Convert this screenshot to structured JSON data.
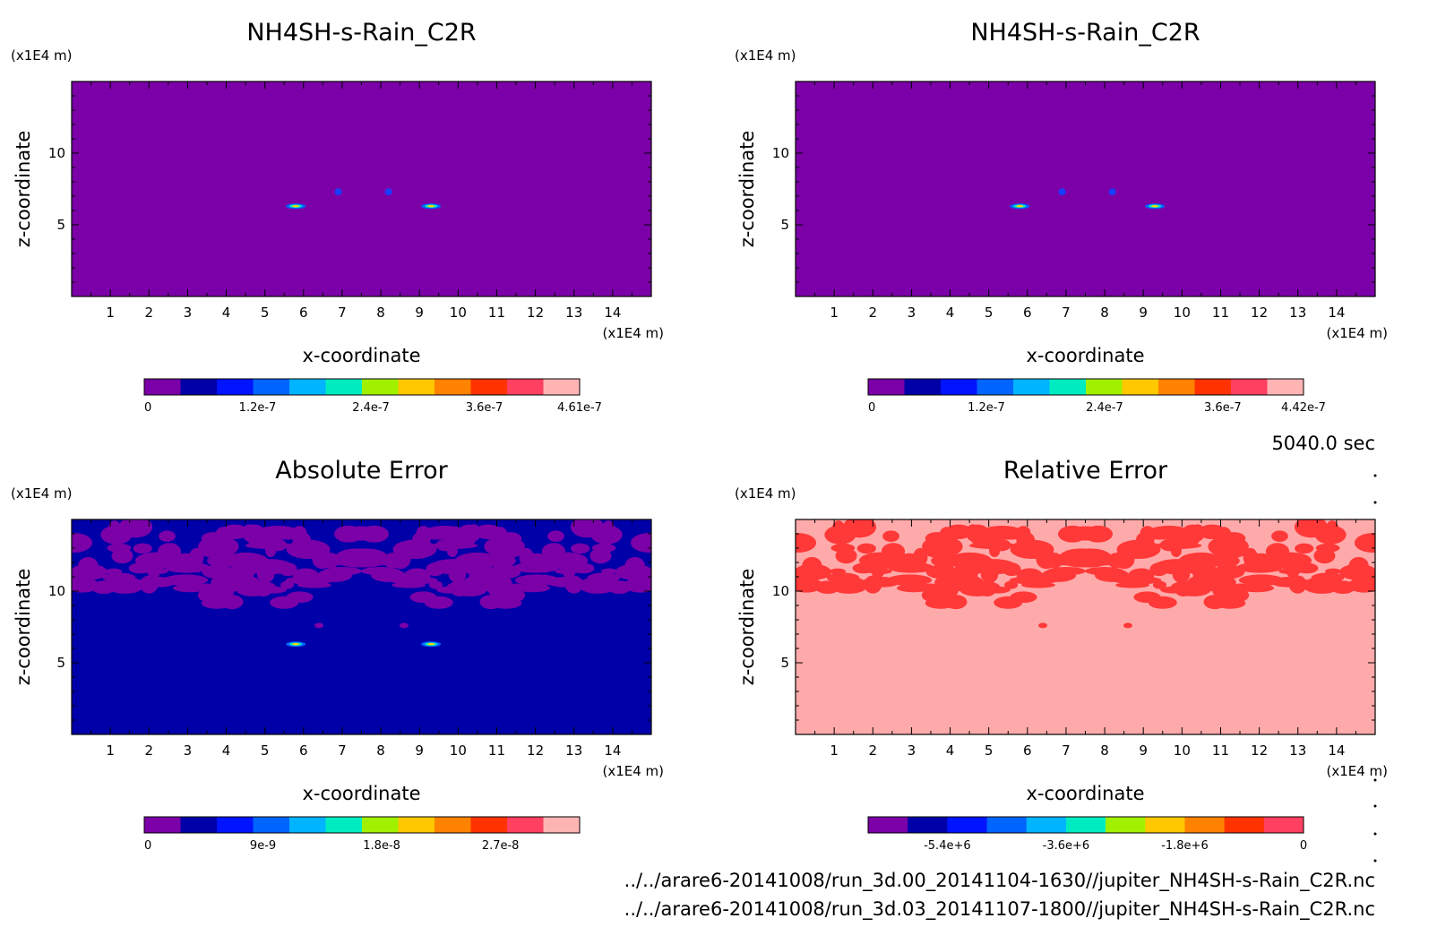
{
  "figure": {
    "time_label": "5040.0 sec",
    "files": [
      "../../arare6-20141008/run_3d.00_20141104-1630//jupiter_NH4SH-s-Rain_C2R.nc",
      "../../arare6-20141008/run_3d.03_20141107-1800//jupiter_NH4SH-s-Rain_C2R.nc"
    ]
  },
  "chart_data": [
    {
      "type": "heatmap",
      "title": "NH4SH-s-Rain_C2R",
      "xlabel": "x-coordinate",
      "ylabel": "z-coordinate",
      "x_unit": "(x1E4 m)",
      "y_unit": "(x1E4 m)",
      "xlim": [
        0,
        15
      ],
      "ylim": [
        0,
        15
      ],
      "x_ticks": [
        1,
        2,
        3,
        4,
        5,
        6,
        7,
        8,
        9,
        10,
        11,
        12,
        13,
        14
      ],
      "y_ticks": [
        5,
        10
      ],
      "background_color": "#7c00a8",
      "features": [
        {
          "shape": "streak",
          "x": 5.8,
          "z": 6.3,
          "color": "#ffd200"
        },
        {
          "shape": "streak",
          "x": 9.3,
          "z": 6.3,
          "color": "#ffd200"
        },
        {
          "shape": "blob",
          "x": 6.9,
          "z": 7.3,
          "color": "#1a3cff"
        },
        {
          "shape": "blob",
          "x": 8.2,
          "z": 7.3,
          "color": "#1a3cff"
        }
      ],
      "colorbar": {
        "range": [
          0,
          4.61e-07
        ],
        "levels": 11,
        "colors": [
          "#7c00a8",
          "#0000a8",
          "#0014ff",
          "#0064ff",
          "#00b4ff",
          "#00ecc0",
          "#a0f000",
          "#ffc800",
          "#ff8200",
          "#ff3200",
          "#ff4060",
          "#ffb4b4"
        ],
        "tick_values": [
          0,
          1.2e-07,
          2.4e-07,
          3.6e-07,
          4.61e-07
        ],
        "tick_labels": [
          "0",
          "1.2e-7",
          "2.4e-7",
          "3.6e-7",
          "4.61e-7"
        ]
      }
    },
    {
      "type": "heatmap",
      "title": "NH4SH-s-Rain_C2R",
      "xlabel": "x-coordinate",
      "ylabel": "z-coordinate",
      "x_unit": "(x1E4 m)",
      "y_unit": "(x1E4 m)",
      "xlim": [
        0,
        15
      ],
      "ylim": [
        0,
        15
      ],
      "x_ticks": [
        1,
        2,
        3,
        4,
        5,
        6,
        7,
        8,
        9,
        10,
        11,
        12,
        13,
        14
      ],
      "y_ticks": [
        5,
        10
      ],
      "background_color": "#7c00a8",
      "features": [
        {
          "shape": "streak",
          "x": 5.8,
          "z": 6.3,
          "color": "#ffd200"
        },
        {
          "shape": "streak",
          "x": 9.3,
          "z": 6.3,
          "color": "#ffd200"
        },
        {
          "shape": "blob",
          "x": 6.9,
          "z": 7.3,
          "color": "#1a3cff"
        },
        {
          "shape": "blob",
          "x": 8.2,
          "z": 7.3,
          "color": "#1a3cff"
        }
      ],
      "colorbar": {
        "range": [
          0,
          4.42e-07
        ],
        "levels": 11,
        "colors": [
          "#7c00a8",
          "#0000a8",
          "#0014ff",
          "#0064ff",
          "#00b4ff",
          "#00ecc0",
          "#a0f000",
          "#ffc800",
          "#ff8200",
          "#ff3200",
          "#ff4060",
          "#ffb4b4"
        ],
        "tick_values": [
          0,
          1.2e-07,
          2.4e-07,
          3.6e-07,
          4.42e-07
        ],
        "tick_labels": [
          "0",
          "1.2e-7",
          "2.4e-7",
          "3.6e-7",
          "4.42e-7"
        ]
      }
    },
    {
      "type": "heatmap",
      "title": "Absolute Error",
      "xlabel": "x-coordinate",
      "ylabel": "z-coordinate",
      "x_unit": "(x1E4 m)",
      "y_unit": "(x1E4 m)",
      "xlim": [
        0,
        15
      ],
      "ylim": [
        0,
        15
      ],
      "x_ticks": [
        1,
        2,
        3,
        4,
        5,
        6,
        7,
        8,
        9,
        10,
        11,
        12,
        13,
        14
      ],
      "y_ticks": [
        5,
        10
      ],
      "background_color": "#0000a8",
      "patch_color": "#7c00a8",
      "features": [
        {
          "shape": "streak",
          "x": 5.8,
          "z": 6.3,
          "color": "#ffd200"
        },
        {
          "shape": "streak",
          "x": 9.3,
          "z": 6.3,
          "color": "#ffd200"
        }
      ],
      "colorbar": {
        "range": [
          0,
          3.3e-08
        ],
        "levels": 11,
        "colors": [
          "#7c00a8",
          "#0000a8",
          "#0014ff",
          "#0064ff",
          "#00b4ff",
          "#00ecc0",
          "#a0f000",
          "#ffc800",
          "#ff8200",
          "#ff3200",
          "#ff4060",
          "#ffb4b4"
        ],
        "tick_values": [
          0,
          9e-09,
          1.8e-08,
          2.7e-08
        ],
        "tick_labels": [
          "0",
          "9e-9",
          "1.8e-8",
          "2.7e-8"
        ]
      }
    },
    {
      "type": "heatmap",
      "title": "Relative Error",
      "xlabel": "x-coordinate",
      "ylabel": "z-coordinate",
      "x_unit": "(x1E4 m)",
      "y_unit": "(x1E4 m)",
      "xlim": [
        0,
        15
      ],
      "ylim": [
        0,
        15
      ],
      "x_ticks": [
        1,
        2,
        3,
        4,
        5,
        6,
        7,
        8,
        9,
        10,
        11,
        12,
        13,
        14
      ],
      "y_ticks": [
        5,
        10
      ],
      "background_color": "#ffaaaa",
      "patch_color": "#ff3838",
      "features": [],
      "colorbar": {
        "range": [
          -6600000.0,
          0
        ],
        "levels": 11,
        "colors": [
          "#7c00a8",
          "#0000a8",
          "#0014ff",
          "#0064ff",
          "#00b4ff",
          "#00ecc0",
          "#a0f000",
          "#ffc800",
          "#ff8200",
          "#ff3200",
          "#ff4060"
        ],
        "tick_values": [
          -5400000.0,
          -3600000.0,
          -1800000.0,
          0
        ],
        "tick_labels": [
          "-5.4e+6",
          "-3.6e+6",
          "-1.8e+6",
          "0"
        ]
      }
    }
  ]
}
